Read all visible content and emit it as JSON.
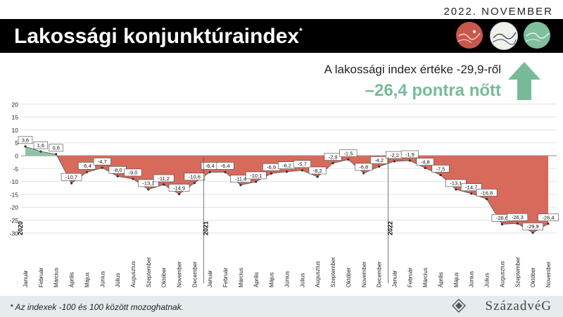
{
  "header": {
    "date": "2022. NOVEMBER",
    "title": "Lakossági konjunktúraindex",
    "title_mark": "*"
  },
  "headline": {
    "line1": "A lakossági index értéke -29,9-ről",
    "line2": "–26,4 pontra nőtt",
    "accent": "#77bb9a"
  },
  "footer": {
    "note": "* Az indexek -100 és 100 között mozoghatnak.",
    "brand": "SzázadvéG"
  },
  "icons": [
    "map-circle-red-icon",
    "map-circle-white-icon",
    "map-circle-green-icon",
    "up-arrow-icon",
    "brand-logo-icon"
  ],
  "colors": {
    "positive": "#8fc3a4",
    "negative": "#d86a5c",
    "accent": "#77bb9a"
  },
  "chart_data": {
    "type": "area",
    "ylim": [
      -30,
      20
    ],
    "yticks": [
      20,
      15,
      10,
      5,
      0,
      -5,
      -10,
      -15,
      -20,
      -25,
      -30
    ],
    "grid": true,
    "categories": [
      "Január",
      "Február",
      "Március",
      "Április",
      "Május",
      "Június",
      "Július",
      "Augusztus",
      "Szeptember",
      "Október",
      "November",
      "December",
      "Január",
      "Február",
      "Március",
      "Április",
      "Május",
      "Június",
      "Július",
      "Augusztus",
      "Szeptember",
      "Október",
      "November",
      "December",
      "Január",
      "Február",
      "Március",
      "Április",
      "Május",
      "Június",
      "Július",
      "Augusztus",
      "Szeptember",
      "Október",
      "November"
    ],
    "values": [
      3.6,
      1.6,
      0.6,
      -10.7,
      -6.4,
      -4.7,
      -8.0,
      -9.0,
      -13.1,
      -11.2,
      -14.9,
      -10.6,
      -6.4,
      -6.4,
      -11.4,
      -10.1,
      -6.9,
      -6.2,
      -5.7,
      -8.2,
      -2.9,
      -1.5,
      -6.8,
      -4.2,
      -2.2,
      -1.9,
      -4.8,
      -7.5,
      -13.1,
      -14.7,
      -16.8,
      -26.6,
      -26.3,
      -29.9,
      -26.4
    ],
    "labels": [
      "3,6",
      "1,6",
      "0,6",
      "-10,7",
      "-6,4",
      "-4,7",
      "-8,0",
      "-9,0",
      "-13,1",
      "-11,2",
      "-14,9",
      "-10,6",
      "-6,4",
      "-6,4",
      "-11,4",
      "-10,1",
      "-6,9",
      "-6,2",
      "-5,7",
      "-8,2",
      "-2,9",
      "-1,5",
      "-6,8",
      "-4,2",
      "-2,2",
      "-1,9",
      "-4,8",
      "-7,5",
      "-13,1",
      "-14,7",
      "-16,8",
      "-26,6",
      "-26,3",
      "-29,9",
      "-26,4"
    ],
    "years": [
      {
        "label": "2020",
        "start_index": 0
      },
      {
        "label": "2021",
        "start_index": 12
      },
      {
        "label": "2022",
        "start_index": 24
      }
    ]
  }
}
